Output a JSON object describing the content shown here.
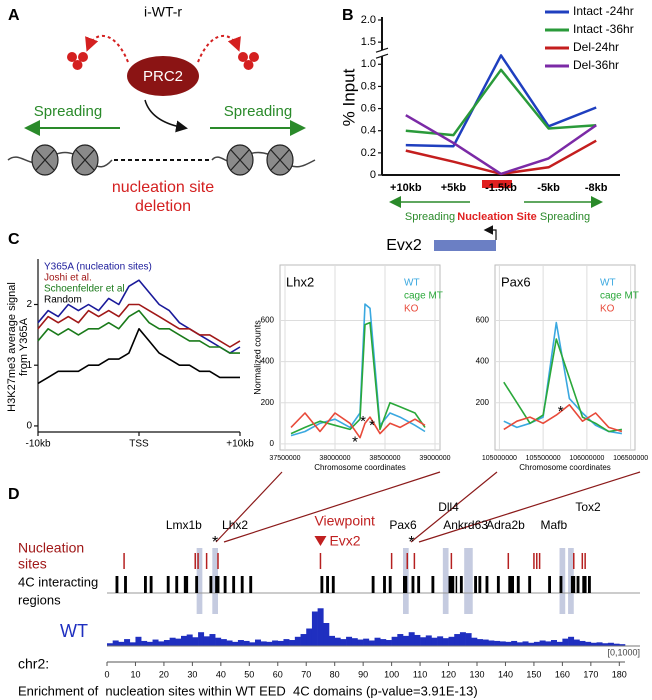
{
  "panels": [
    "A",
    "B",
    "C",
    "D"
  ],
  "diagram": {
    "label": "i-WT-r",
    "complex": "PRC2",
    "left_arrow": "Spreading",
    "right_arrow": "Spreading",
    "deletion": [
      "nucleation site",
      "deletion"
    ]
  },
  "locus": {
    "left": "Spreading",
    "center": "Nucleation Site",
    "right": "Spreading",
    "gene": "Evx2"
  },
  "chart_data": [
    {
      "type": "line",
      "ylabel": "% Input",
      "categories": [
        "+10kb",
        "+5kb",
        "-1.5kb",
        "-5kb",
        "-8kb"
      ],
      "series": [
        {
          "name": "Intact -24hr",
          "color": "#1f3fbf",
          "values": [
            0.27,
            0.26,
            1.2,
            0.44,
            0.61
          ]
        },
        {
          "name": "Intact -36hr",
          "color": "#2a9a3a",
          "values": [
            0.4,
            0.36,
            0.95,
            0.42,
            0.45
          ]
        },
        {
          "name": "Del-24hr",
          "color": "#c41e1e",
          "values": [
            0.22,
            0.12,
            0.01,
            0.07,
            0.31
          ]
        },
        {
          "name": "Del-36hr",
          "color": "#7b2aa6",
          "values": [
            0.54,
            0.29,
            0.01,
            0.15,
            0.45
          ]
        }
      ],
      "ylim": [
        0,
        2
      ],
      "yticks": [
        0,
        0.2,
        0.4,
        0.6,
        0.8,
        {
          "value": 1,
          "label": "1.0"
        },
        1.5,
        {
          "value": 2,
          "label": "2.0"
        }
      ],
      "axis_break": true,
      "legend": "upper right"
    },
    {
      "type": "line",
      "ylabel": [
        "H3K27me3 average signal",
        "from Y365A"
      ],
      "x": [
        -10,
        -9,
        -8,
        -7,
        -6,
        -5,
        -4,
        -3,
        -2,
        -1,
        0,
        1,
        2,
        3,
        4,
        5,
        6,
        7,
        8,
        9,
        10
      ],
      "xlim": [
        -10,
        10
      ],
      "xticks": [
        {
          "value": -10,
          "label": "-10kb"
        },
        {
          "value": 0,
          "label": "TSS"
        },
        {
          "value": 10,
          "label": "+10kb"
        }
      ],
      "ylim": [
        -0.1,
        2.7
      ],
      "yticks": [
        0,
        1,
        2
      ],
      "series": [
        {
          "name": "Y365A (nucleation sites)",
          "color": "#1a1a9a",
          "values": [
            1.7,
            1.9,
            1.8,
            2.0,
            1.9,
            2.0,
            1.9,
            2.1,
            2.0,
            2.3,
            2.4,
            2.2,
            2.0,
            1.9,
            1.7,
            1.6,
            1.5,
            1.4,
            1.3,
            1.2,
            1.3
          ]
        },
        {
          "name": "Joshi et al.",
          "color": "#a01818",
          "values": [
            1.6,
            1.8,
            1.7,
            1.8,
            1.7,
            1.9,
            1.8,
            1.9,
            1.8,
            2.0,
            2.0,
            1.9,
            1.8,
            1.7,
            1.6,
            1.6,
            1.5,
            1.5,
            1.4,
            1.3,
            1.4
          ]
        },
        {
          "name": "Schoenfelder et al.",
          "color": "#1a7a1a",
          "values": [
            1.4,
            1.6,
            1.5,
            1.6,
            1.5,
            1.6,
            1.6,
            1.7,
            1.6,
            1.8,
            1.9,
            1.7,
            1.6,
            1.6,
            1.5,
            1.4,
            1.4,
            1.3,
            1.3,
            1.2,
            1.2
          ]
        },
        {
          "name": "Random",
          "color": "#000000",
          "values": [
            0.7,
            0.8,
            0.9,
            0.9,
            0.9,
            1.0,
            1.0,
            1.1,
            1.1,
            1.2,
            1.6,
            1.4,
            1.2,
            1.1,
            1.0,
            1.0,
            0.9,
            0.9,
            0.8,
            0.8,
            0.8
          ]
        }
      ],
      "legend": "upper left"
    },
    {
      "type": "line",
      "title": "Lhx2",
      "ylabel": "Normalized counts",
      "xlabel": "Chromosome coordinates",
      "x": [
        37560000,
        37700000,
        37850000,
        38000000,
        38150000,
        38250000,
        38300000,
        38350000,
        38450000,
        38550000,
        38650000,
        38800000,
        38900000
      ],
      "xlim": [
        37450000,
        39050000
      ],
      "xticks": [
        37500000,
        38000000,
        38500000,
        39000000
      ],
      "ylim": [
        -30,
        870
      ],
      "yticks": [
        0,
        200,
        400,
        600
      ],
      "grid": true,
      "series": [
        {
          "name": "WT",
          "color": "#3aa8e0",
          "values": [
            40,
            60,
            100,
            120,
            80,
            150,
            680,
            660,
            90,
            150,
            130,
            90,
            60
          ]
        },
        {
          "name": "cage MT",
          "color": "#2aa83a",
          "values": [
            50,
            80,
            110,
            90,
            70,
            120,
            580,
            590,
            70,
            200,
            180,
            150,
            80
          ]
        },
        {
          "name": "KO",
          "color": "#e84a3a",
          "values": [
            80,
            150,
            60,
            150,
            100,
            30,
            100,
            130,
            50,
            100,
            80,
            120,
            90
          ]
        }
      ],
      "annotations": [
        {
          "label": "*",
          "x": 38200000,
          "y": 20
        },
        {
          "label": "*",
          "x": 38280000,
          "y": 120
        },
        {
          "label": "*",
          "x": 38370000,
          "y": 100
        }
      ],
      "legend": "upper right"
    },
    {
      "type": "line",
      "title": "Pax6",
      "xlabel": "Chromosome coordinates",
      "x": [
        105050000,
        105200000,
        105350000,
        105500000,
        105650000,
        105800000,
        105950000,
        106100000,
        106250000,
        106400000
      ],
      "xlim": [
        104950000,
        106550000
      ],
      "xticks": [
        105000000,
        105500000,
        106000000,
        106500000
      ],
      "ylim": [
        -30,
        870
      ],
      "yticks": [
        200,
        400,
        600
      ],
      "grid": true,
      "series": [
        {
          "name": "WT",
          "color": "#3aa8e0",
          "values": [
            110,
            80,
            100,
            130,
            590,
            220,
            150,
            90,
            60,
            50
          ]
        },
        {
          "name": "cage MT",
          "color": "#2aa83a",
          "values": [
            300,
            200,
            100,
            140,
            510,
            320,
            130,
            100,
            60,
            70
          ]
        },
        {
          "name": "KO",
          "color": "#e84a3a",
          "values": [
            70,
            110,
            130,
            100,
            140,
            190,
            110,
            150,
            80,
            60
          ]
        }
      ],
      "annotations": [
        {
          "label": "*",
          "x": 105700000,
          "y": 170
        }
      ],
      "legend": "upper right"
    },
    {
      "type": "genome_track",
      "xlabel": "chr2:",
      "xlim": [
        0,
        182
      ],
      "xticks": [
        0,
        10,
        20,
        30,
        40,
        50,
        60,
        70,
        80,
        90,
        100,
        110,
        120,
        130,
        140,
        150,
        160,
        170,
        180
      ],
      "range_label": "[0,1000]",
      "ylim": [
        0,
        1000
      ],
      "genes": [
        {
          "label": "Lmx1b",
          "x": 27
        },
        {
          "label": "Lhx2",
          "x": 45
        },
        {
          "label": "Pax6",
          "x": 104
        },
        {
          "label": "Ankrd63",
          "x": 126
        },
        {
          "label": "Dll4",
          "x": 120
        },
        {
          "label": "Adra2b",
          "x": 140
        },
        {
          "label": "Mafb",
          "x": 157
        },
        {
          "label": "Tox2",
          "x": 169
        }
      ],
      "viewpoint": {
        "label": "Viewpoint",
        "gene": "Evx2",
        "x": 75
      },
      "stars": [
        {
          "label": "*",
          "x": 38
        },
        {
          "label": "*",
          "x": 107
        }
      ],
      "nucleation": {
        "name": [
          "Nucleation",
          "sites"
        ],
        "color": "#b52020",
        "positions": [
          6,
          31,
          32,
          35,
          39,
          75,
          100,
          105.5,
          108,
          121,
          141,
          150,
          151,
          152,
          164,
          167,
          168
        ]
      },
      "interacting": {
        "name": [
          "4C interacting",
          "regions"
        ],
        "color": "#000000",
        "regions": [
          [
            3,
            4
          ],
          [
            6,
            7
          ],
          [
            13,
            14
          ],
          [
            15,
            16
          ],
          [
            21,
            22
          ],
          [
            24,
            25
          ],
          [
            27,
            28.5
          ],
          [
            31,
            32
          ],
          [
            36,
            37
          ],
          [
            38,
            39.5
          ],
          [
            41,
            42
          ],
          [
            44,
            45
          ],
          [
            47,
            48
          ],
          [
            50,
            51
          ],
          [
            75,
            76
          ],
          [
            77,
            78
          ],
          [
            79,
            80
          ],
          [
            93,
            94
          ],
          [
            97,
            98
          ],
          [
            99,
            100
          ],
          [
            104,
            105.5
          ],
          [
            107,
            108
          ],
          [
            109,
            110
          ],
          [
            114,
            115
          ],
          [
            120,
            122
          ],
          [
            122.5,
            123
          ],
          [
            124,
            125
          ],
          [
            129,
            130
          ],
          [
            130.5,
            131.5
          ],
          [
            133,
            134
          ],
          [
            137,
            138
          ],
          [
            141,
            143
          ],
          [
            144,
            145
          ],
          [
            148,
            149
          ],
          [
            155,
            156
          ],
          [
            159,
            160
          ],
          [
            163,
            164.5
          ],
          [
            165,
            166
          ],
          [
            167,
            168.5
          ],
          [
            169,
            170
          ]
        ]
      },
      "highlights": [
        [
          31.5,
          33.5
        ],
        [
          37,
          39
        ],
        [
          104,
          106
        ],
        [
          118,
          120
        ],
        [
          125.5,
          128.5
        ],
        [
          159,
          161
        ],
        [
          162,
          164
        ]
      ],
      "signal": {
        "name": "WT",
        "color": "#1f2fc0",
        "values": [
          60,
          120,
          90,
          150,
          80,
          200,
          110,
          90,
          140,
          100,
          130,
          180,
          160,
          220,
          250,
          190,
          300,
          210,
          260,
          180,
          150,
          120,
          90,
          130,
          110,
          80,
          140,
          100,
          90,
          120,
          110,
          150,
          130,
          200,
          260,
          380,
          750,
          820,
          500,
          220,
          180,
          150,
          200,
          170,
          140,
          160,
          120,
          180,
          150,
          130,
          200,
          260,
          220,
          300,
          240,
          190,
          230,
          180,
          210,
          170,
          200,
          260,
          300,
          280,
          180,
          150,
          140,
          120,
          110,
          100,
          90,
          110,
          80,
          100,
          70,
          90,
          120,
          100,
          130,
          90,
          160,
          200,
          140,
          110,
          90,
          70,
          80,
          60,
          70,
          50,
          40
        ]
      },
      "caption": "Enrichment of  nucleation sites within WT EED  4C domains (p-value=3.91E-13)"
    }
  ]
}
